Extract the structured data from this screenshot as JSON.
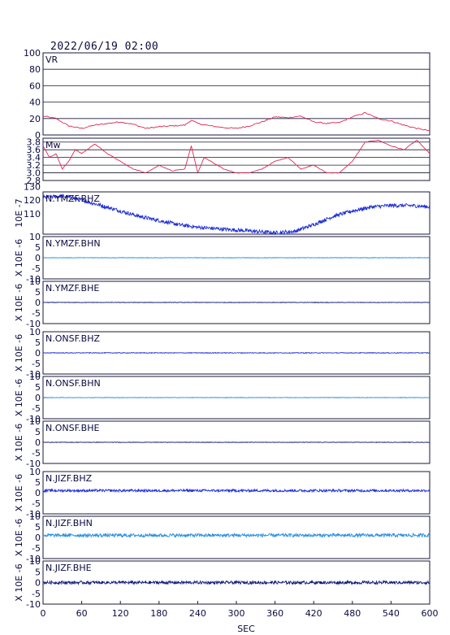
{
  "header": {
    "datetime": "2022/06/19 02:00"
  },
  "chart_data": {
    "type": "line",
    "xlabel": "SEC",
    "xlim": [
      0,
      600
    ],
    "xticks": [
      "0",
      "60",
      "120",
      "180",
      "240",
      "300",
      "360",
      "420",
      "480",
      "540",
      "600"
    ],
    "panels": [
      {
        "id": "vr",
        "label": "VR",
        "ylabel": "",
        "color": "#e0264d",
        "ylim": [
          0,
          100
        ],
        "yticks": [
          "0",
          "20",
          "40",
          "60",
          "80",
          "100"
        ],
        "grid": true,
        "series": [
          [
            0,
            23
          ],
          [
            20,
            20
          ],
          [
            40,
            11
          ],
          [
            60,
            8
          ],
          [
            80,
            12
          ],
          [
            100,
            14
          ],
          [
            120,
            16
          ],
          [
            140,
            13
          ],
          [
            160,
            8
          ],
          [
            180,
            10
          ],
          [
            200,
            11
          ],
          [
            220,
            12
          ],
          [
            230,
            18
          ],
          [
            240,
            14
          ],
          [
            260,
            11
          ],
          [
            280,
            9
          ],
          [
            300,
            8
          ],
          [
            320,
            11
          ],
          [
            340,
            16
          ],
          [
            360,
            22
          ],
          [
            380,
            21
          ],
          [
            400,
            23
          ],
          [
            420,
            16
          ],
          [
            440,
            14
          ],
          [
            460,
            15
          ],
          [
            480,
            22
          ],
          [
            500,
            27
          ],
          [
            520,
            20
          ],
          [
            540,
            17
          ],
          [
            560,
            12
          ],
          [
            580,
            8
          ],
          [
            600,
            5
          ]
        ]
      },
      {
        "id": "mw",
        "label": "Mw",
        "ylabel": "",
        "color": "#e0264d",
        "ylim": [
          2.8,
          3.9
        ],
        "yticks": [
          "2.8",
          "3.0",
          "3.2",
          "3.4",
          "3.6",
          "3.8"
        ],
        "grid": true,
        "series": [
          [
            0,
            3.7
          ],
          [
            10,
            3.4
          ],
          [
            20,
            3.5
          ],
          [
            30,
            3.1
          ],
          [
            40,
            3.3
          ],
          [
            50,
            3.6
          ],
          [
            60,
            3.5
          ],
          [
            80,
            3.75
          ],
          [
            100,
            3.5
          ],
          [
            120,
            3.3
          ],
          [
            140,
            3.1
          ],
          [
            160,
            3.0
          ],
          [
            180,
            3.2
          ],
          [
            200,
            3.05
          ],
          [
            220,
            3.1
          ],
          [
            230,
            3.7
          ],
          [
            240,
            3.0
          ],
          [
            250,
            3.4
          ],
          [
            260,
            3.3
          ],
          [
            280,
            3.1
          ],
          [
            300,
            3.0
          ],
          [
            320,
            3.0
          ],
          [
            340,
            3.1
          ],
          [
            360,
            3.3
          ],
          [
            380,
            3.4
          ],
          [
            400,
            3.1
          ],
          [
            420,
            3.2
          ],
          [
            440,
            3.0
          ],
          [
            460,
            3.0
          ],
          [
            480,
            3.3
          ],
          [
            500,
            3.8
          ],
          [
            520,
            3.85
          ],
          [
            540,
            3.7
          ],
          [
            560,
            3.6
          ],
          [
            580,
            3.85
          ],
          [
            600,
            3.5
          ]
        ]
      },
      {
        "id": "ymzf-bhz",
        "label": "N.YMZF.BHZ",
        "ylabel": "10E -7",
        "color": "#1f2fd6",
        "ylim": [
          95,
          126
        ],
        "yticks": [
          "110",
          "120",
          "130"
        ],
        "grid": false,
        "amplitude": 0.045,
        "series": [
          [
            0,
            122
          ],
          [
            30,
            123
          ],
          [
            60,
            120
          ],
          [
            90,
            116
          ],
          [
            120,
            112
          ],
          [
            150,
            108
          ],
          [
            180,
            105
          ],
          [
            210,
            102
          ],
          [
            240,
            100
          ],
          [
            270,
            99
          ],
          [
            300,
            98
          ],
          [
            330,
            97
          ],
          [
            360,
            96
          ],
          [
            390,
            97
          ],
          [
            420,
            102
          ],
          [
            450,
            108
          ],
          [
            480,
            112
          ],
          [
            510,
            115
          ],
          [
            540,
            116
          ],
          [
            570,
            116
          ],
          [
            600,
            115
          ]
        ]
      },
      {
        "id": "ymzf-bhn",
        "label": "N.YMZF.BHN",
        "ylabel": "X 10E -6",
        "color": "#2a8de0",
        "ylim": [
          -10,
          10
        ],
        "yticks": [
          "-10",
          "-5",
          "0",
          "5",
          "10"
        ],
        "grid": false,
        "amplitude": 0.006,
        "series": [
          [
            0,
            0
          ],
          [
            600,
            0
          ]
        ]
      },
      {
        "id": "ymzf-bhe",
        "label": "N.YMZF.BHE",
        "ylabel": "X 10E -6",
        "color": "#101a7a",
        "ylim": [
          -10,
          10
        ],
        "yticks": [
          "-10",
          "-5",
          "0",
          "5",
          "10"
        ],
        "grid": false,
        "amplitude": 0.006,
        "series": [
          [
            0,
            0
          ],
          [
            600,
            0
          ]
        ]
      },
      {
        "id": "onsf-bhz",
        "label": "N.ONSF.BHZ",
        "ylabel": "X 10E -6",
        "color": "#1f2fd6",
        "ylim": [
          -10,
          10
        ],
        "yticks": [
          "-10",
          "-5",
          "0",
          "5",
          "10"
        ],
        "grid": false,
        "amplitude": 0.008,
        "series": [
          [
            0,
            0
          ],
          [
            600,
            0
          ]
        ]
      },
      {
        "id": "onsf-bhn",
        "label": "N.ONSF.BHN",
        "ylabel": "X 10E -6",
        "color": "#2a8de0",
        "ylim": [
          -10,
          10
        ],
        "yticks": [
          "-10",
          "-5",
          "0",
          "5",
          "10"
        ],
        "grid": false,
        "amplitude": 0.006,
        "series": [
          [
            0,
            0
          ],
          [
            600,
            0
          ]
        ]
      },
      {
        "id": "onsf-bhe",
        "label": "N.ONSF.BHE",
        "ylabel": "X 10E -6",
        "color": "#101a7a",
        "ylim": [
          -10,
          10
        ],
        "yticks": [
          "-10",
          "-5",
          "0",
          "5",
          "10"
        ],
        "grid": false,
        "amplitude": 0.006,
        "series": [
          [
            0,
            0
          ],
          [
            600,
            0
          ]
        ]
      },
      {
        "id": "jizf-bhz",
        "label": "N.JIZF.BHZ",
        "ylabel": "X 10E -6",
        "color": "#1f2fd6",
        "ylim": [
          -10,
          10
        ],
        "yticks": [
          "-10",
          "-5",
          "0",
          "5",
          "10"
        ],
        "grid": false,
        "amplitude": 0.03,
        "series": [
          [
            0,
            1
          ],
          [
            600,
            1
          ]
        ]
      },
      {
        "id": "jizf-bhn",
        "label": "N.JIZF.BHN",
        "ylabel": "X 10E -6",
        "color": "#2a8de0",
        "ylim": [
          -10,
          10
        ],
        "yticks": [
          "-10",
          "-5",
          "0",
          "5",
          "10"
        ],
        "grid": false,
        "amplitude": 0.04,
        "series": [
          [
            0,
            1
          ],
          [
            600,
            1
          ]
        ]
      },
      {
        "id": "jizf-bhe",
        "label": "N.JIZF.BHE",
        "ylabel": "X 10E -6",
        "color": "#101a7a",
        "ylim": [
          -10,
          10
        ],
        "yticks": [
          "-10",
          "-5",
          "0",
          "5",
          "10"
        ],
        "grid": false,
        "amplitude": 0.035,
        "series": [
          [
            0,
            0
          ],
          [
            600,
            0
          ]
        ]
      }
    ]
  }
}
